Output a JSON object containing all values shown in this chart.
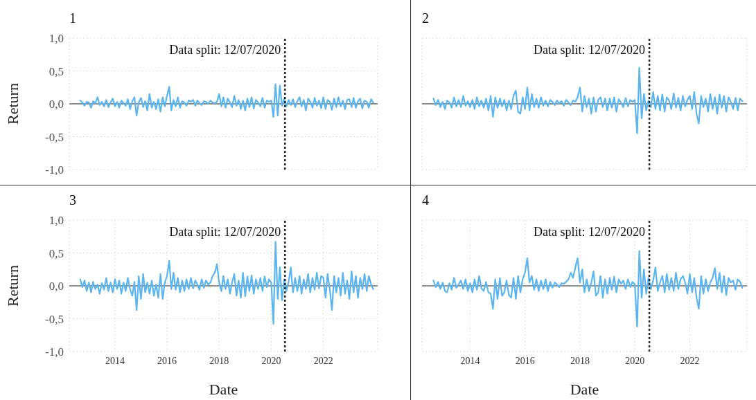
{
  "chart_data": [
    {
      "type": "line",
      "title": "1",
      "ylabel": "Return",
      "tick_labels": "y",
      "grid": true,
      "marker": "none",
      "xlim": [
        "2012-04",
        "2024-02"
      ],
      "xticks": [
        "2014",
        "2016",
        "2018",
        "2020",
        "2022"
      ],
      "ylim": [
        -1,
        1
      ],
      "yticks": [
        {
          "value": -1,
          "label": "-1,0"
        },
        {
          "value": -0.5,
          "label": "-0,5"
        },
        {
          "value": 0,
          "label": "0,0"
        },
        {
          "value": 0.5,
          "label": "0,5"
        },
        {
          "value": 1,
          "label": "1,0"
        }
      ],
      "ref_lines": [
        {
          "axis": "y",
          "value": 0,
          "color": "#666666"
        },
        {
          "axis": "x",
          "value": "2020-07-12",
          "label": "Data split: 12/07/2020",
          "color": "#222222",
          "line_style": "dotted"
        }
      ],
      "x": [
        "2012-09",
        "2012-10",
        "2012-11",
        "2012-12",
        "2013-01",
        "2013-02",
        "2013-03",
        "2013-04",
        "2013-05",
        "2013-06",
        "2013-07",
        "2013-08",
        "2013-09",
        "2013-10",
        "2013-11",
        "2013-12",
        "2014-01",
        "2014-02",
        "2014-03",
        "2014-04",
        "2014-05",
        "2014-06",
        "2014-07",
        "2014-08",
        "2014-09",
        "2014-10",
        "2014-11",
        "2014-12",
        "2015-01",
        "2015-02",
        "2015-03",
        "2015-04",
        "2015-05",
        "2015-06",
        "2015-07",
        "2015-08",
        "2015-09",
        "2015-10",
        "2015-11",
        "2015-12",
        "2016-01",
        "2016-02",
        "2016-03",
        "2016-04",
        "2016-05",
        "2016-06",
        "2016-07",
        "2016-08",
        "2016-09",
        "2016-10",
        "2016-11",
        "2016-12",
        "2017-01",
        "2017-02",
        "2017-03",
        "2017-04",
        "2017-05",
        "2017-06",
        "2017-07",
        "2017-08",
        "2017-09",
        "2017-10",
        "2017-11",
        "2017-12",
        "2018-01",
        "2018-02",
        "2018-03",
        "2018-04",
        "2018-05",
        "2018-06",
        "2018-07",
        "2018-08",
        "2018-09",
        "2018-10",
        "2018-11",
        "2018-12",
        "2019-01",
        "2019-02",
        "2019-03",
        "2019-04",
        "2019-05",
        "2019-06",
        "2019-07",
        "2019-08",
        "2019-09",
        "2019-10",
        "2019-11",
        "2019-12",
        "2020-01",
        "2020-02",
        "2020-03",
        "2020-04",
        "2020-05",
        "2020-06",
        "2020-07",
        "2020-08",
        "2020-09",
        "2020-10",
        "2020-11",
        "2020-12",
        "2021-01",
        "2021-02",
        "2021-03",
        "2021-04",
        "2021-05",
        "2021-06",
        "2021-07",
        "2021-08",
        "2021-09",
        "2021-10",
        "2021-11",
        "2021-12",
        "2022-01",
        "2022-02",
        "2022-03",
        "2022-04",
        "2022-05",
        "2022-06",
        "2022-07",
        "2022-08",
        "2022-09",
        "2022-10",
        "2022-11",
        "2022-12",
        "2023-01",
        "2023-02",
        "2023-03",
        "2023-04",
        "2023-05",
        "2023-06",
        "2023-07",
        "2023-08",
        "2023-09",
        "2023-10",
        "2023-11",
        "2023-12"
      ],
      "series": [
        {
          "color": "#5ab4f0",
          "values": [
            0.05,
            0.02,
            -0.03,
            0.03,
            0.02,
            -0.06,
            0.04,
            0.01,
            0.1,
            -0.02,
            0.03,
            -0.04,
            0.06,
            -0.05,
            0.02,
            0.08,
            -0.04,
            0.03,
            -0.06,
            0.05,
            0.01,
            -0.03,
            0.07,
            -0.08,
            0.04,
            0.1,
            -0.18,
            0.02,
            0.09,
            -0.05,
            0.04,
            -0.1,
            0.15,
            -0.06,
            0.03,
            -0.08,
            0.07,
            -0.12,
            0.1,
            -0.04,
            0.12,
            0.26,
            -0.1,
            0.06,
            -0.04,
            0.1,
            -0.06,
            0.04,
            0.02,
            -0.03,
            0.05,
            0.03,
            0.06,
            -0.03,
            0.05,
            0.01,
            -0.02,
            0.04,
            0.03,
            0,
            0.05,
            0.02,
            0.01,
            0.03,
            0.15,
            -0.04,
            0.1,
            -0.06,
            0.08,
            0.02,
            -0.05,
            0.12,
            -0.03,
            0.06,
            -0.08,
            0.05,
            -0.1,
            0.08,
            -0.05,
            0.1,
            -0.07,
            0.06,
            0.02,
            -0.04,
            0.09,
            -0.06,
            0.05,
            0.03,
            0.05,
            -0.2,
            0.3,
            -0.18,
            0.28,
            -0.03,
            0.08,
            -0.04,
            0.06,
            -0.02,
            0.07,
            -0.05,
            0.04,
            0.1,
            -0.04,
            0.06,
            -0.1,
            0.08,
            0.03,
            -0.06,
            0.09,
            -0.03,
            0.05,
            -0.07,
            0.1,
            -0.08,
            0.06,
            0.03,
            -0.09,
            0.08,
            -0.05,
            0.1,
            -0.04,
            0.05,
            -0.08,
            0.06,
            0.07,
            -0.05,
            0.09,
            -0.06,
            0.04,
            0.08,
            -0.07,
            0.05,
            0.03,
            -0.06,
            0.07,
            0.02
          ]
        }
      ]
    },
    {
      "type": "line",
      "title": "2",
      "tick_labels": false,
      "grid": true,
      "marker": "none",
      "xlim": [
        "2012-04",
        "2024-02"
      ],
      "xticks": [
        "2014",
        "2016",
        "2018",
        "2020",
        "2022"
      ],
      "ylim": [
        -1,
        1
      ],
      "yticks": [
        {
          "value": -1,
          "label": null
        },
        {
          "value": -0.5,
          "label": null
        },
        {
          "value": 0,
          "label": null
        },
        {
          "value": 0.5,
          "label": null
        },
        {
          "value": 1,
          "label": null
        }
      ],
      "ref_lines": [
        {
          "axis": "y",
          "value": 0,
          "color": "#666666"
        },
        {
          "axis": "x",
          "value": "2020-07-12",
          "label": "Data split: 12/07/2020",
          "color": "#222222",
          "line_style": "dotted"
        }
      ],
      "x": [
        "2012-09",
        "2012-10",
        "2012-11",
        "2012-12",
        "2013-01",
        "2013-02",
        "2013-03",
        "2013-04",
        "2013-05",
        "2013-06",
        "2013-07",
        "2013-08",
        "2013-09",
        "2013-10",
        "2013-11",
        "2013-12",
        "2014-01",
        "2014-02",
        "2014-03",
        "2014-04",
        "2014-05",
        "2014-06",
        "2014-07",
        "2014-08",
        "2014-09",
        "2014-10",
        "2014-11",
        "2014-12",
        "2015-01",
        "2015-02",
        "2015-03",
        "2015-04",
        "2015-05",
        "2015-06",
        "2015-07",
        "2015-08",
        "2015-09",
        "2015-10",
        "2015-11",
        "2015-12",
        "2016-01",
        "2016-02",
        "2016-03",
        "2016-04",
        "2016-05",
        "2016-06",
        "2016-07",
        "2016-08",
        "2016-09",
        "2016-10",
        "2016-11",
        "2016-12",
        "2017-01",
        "2017-02",
        "2017-03",
        "2017-04",
        "2017-05",
        "2017-06",
        "2017-07",
        "2017-08",
        "2017-09",
        "2017-10",
        "2017-11",
        "2017-12",
        "2018-01",
        "2018-02",
        "2018-03",
        "2018-04",
        "2018-05",
        "2018-06",
        "2018-07",
        "2018-08",
        "2018-09",
        "2018-10",
        "2018-11",
        "2018-12",
        "2019-01",
        "2019-02",
        "2019-03",
        "2019-04",
        "2019-05",
        "2019-06",
        "2019-07",
        "2019-08",
        "2019-09",
        "2019-10",
        "2019-11",
        "2019-12",
        "2020-01",
        "2020-02",
        "2020-03",
        "2020-04",
        "2020-05",
        "2020-06",
        "2020-07",
        "2020-08",
        "2020-09",
        "2020-10",
        "2020-11",
        "2020-12",
        "2021-01",
        "2021-02",
        "2021-03",
        "2021-04",
        "2021-05",
        "2021-06",
        "2021-07",
        "2021-08",
        "2021-09",
        "2021-10",
        "2021-11",
        "2021-12",
        "2022-01",
        "2022-02",
        "2022-03",
        "2022-04",
        "2022-05",
        "2022-06",
        "2022-07",
        "2022-08",
        "2022-09",
        "2022-10",
        "2022-11",
        "2022-12",
        "2023-01",
        "2023-02",
        "2023-03",
        "2023-04",
        "2023-05",
        "2023-06",
        "2023-07",
        "2023-08",
        "2023-09",
        "2023-10",
        "2023-11",
        "2023-12"
      ],
      "series": [
        {
          "color": "#5ab4f0",
          "values": [
            0.08,
            -0.02,
            0.06,
            -0.05,
            0.03,
            -0.08,
            0.05,
            0.02,
            -0.06,
            0.1,
            -0.04,
            0.06,
            -0.05,
            0.12,
            -0.03,
            0.04,
            -0.05,
            0.06,
            -0.08,
            0.1,
            -0.04,
            0.05,
            -0.06,
            0.08,
            -0.1,
            0.12,
            -0.2,
            0.1,
            -0.06,
            0.08,
            -0.04,
            0.06,
            -0.1,
            0.05,
            -0.08,
            0.12,
            0.2,
            -0.12,
            -0.15,
            0.1,
            -0.08,
            0.25,
            -0.1,
            0.15,
            -0.05,
            0.08,
            -0.06,
            0.1,
            -0.03,
            0.05,
            -0.04,
            0.06,
            0.03,
            -0.02,
            0.05,
            0.01,
            0.04,
            -0.03,
            0.06,
            0.02,
            -0.02,
            0.05,
            0.03,
            0.1,
            0.25,
            -0.12,
            0.12,
            -0.05,
            0.08,
            -0.15,
            0.1,
            -0.12,
            0.06,
            0.1,
            -0.05,
            0.08,
            -0.1,
            0.08,
            -0.06,
            0.1,
            -0.12,
            0.07,
            0.02,
            -0.05,
            0.09,
            -0.04,
            0.06,
            0.03,
            0.06,
            -0.45,
            0.55,
            -0.22,
            0.15,
            -0.1,
            0.05,
            -0.05,
            0.18,
            -0.08,
            0.12,
            -0.1,
            0.14,
            -0.12,
            0.1,
            0.05,
            -0.08,
            0.16,
            -0.06,
            0.09,
            -0.1,
            0.12,
            -0.04,
            0.06,
            0.12,
            -0.08,
            0.18,
            -0.15,
            -0.3,
            0.12,
            -0.05,
            0.08,
            -0.12,
            0.15,
            -0.08,
            0.1,
            -0.15,
            0.14,
            -0.06,
            0.12,
            -0.12,
            0.1,
            0.03,
            -0.08,
            0.09,
            -0.1,
            0.08,
            0.04
          ]
        }
      ]
    },
    {
      "type": "line",
      "title": "3",
      "xlabel": "Date",
      "ylabel": "Return",
      "grid": true,
      "marker": "none",
      "xlim": [
        "2012-04",
        "2024-02"
      ],
      "xticks": [
        "2014",
        "2016",
        "2018",
        "2020",
        "2022"
      ],
      "ylim": [
        -1,
        1
      ],
      "yticks": [
        {
          "value": -1,
          "label": "-1,0"
        },
        {
          "value": -0.5,
          "label": "-0,5"
        },
        {
          "value": 0,
          "label": "0,0"
        },
        {
          "value": 0.5,
          "label": "0,5"
        },
        {
          "value": 1,
          "label": "1,0"
        }
      ],
      "ref_lines": [
        {
          "axis": "y",
          "value": 0,
          "color": "#666666"
        },
        {
          "axis": "x",
          "value": "2020-07-12",
          "label": "Data split: 12/07/2020",
          "color": "#222222",
          "line_style": "dotted"
        }
      ],
      "x": [
        "2012-09",
        "2012-10",
        "2012-11",
        "2012-12",
        "2013-01",
        "2013-02",
        "2013-03",
        "2013-04",
        "2013-05",
        "2013-06",
        "2013-07",
        "2013-08",
        "2013-09",
        "2013-10",
        "2013-11",
        "2013-12",
        "2014-01",
        "2014-02",
        "2014-03",
        "2014-04",
        "2014-05",
        "2014-06",
        "2014-07",
        "2014-08",
        "2014-09",
        "2014-10",
        "2014-11",
        "2014-12",
        "2015-01",
        "2015-02",
        "2015-03",
        "2015-04",
        "2015-05",
        "2015-06",
        "2015-07",
        "2015-08",
        "2015-09",
        "2015-10",
        "2015-11",
        "2015-12",
        "2016-01",
        "2016-02",
        "2016-03",
        "2016-04",
        "2016-05",
        "2016-06",
        "2016-07",
        "2016-08",
        "2016-09",
        "2016-10",
        "2016-11",
        "2016-12",
        "2017-01",
        "2017-02",
        "2017-03",
        "2017-04",
        "2017-05",
        "2017-06",
        "2017-07",
        "2017-08",
        "2017-09",
        "2017-10",
        "2017-11",
        "2017-12",
        "2018-01",
        "2018-02",
        "2018-03",
        "2018-04",
        "2018-05",
        "2018-06",
        "2018-07",
        "2018-08",
        "2018-09",
        "2018-10",
        "2018-11",
        "2018-12",
        "2019-01",
        "2019-02",
        "2019-03",
        "2019-04",
        "2019-05",
        "2019-06",
        "2019-07",
        "2019-08",
        "2019-09",
        "2019-10",
        "2019-11",
        "2019-12",
        "2020-01",
        "2020-02",
        "2020-03",
        "2020-04",
        "2020-05",
        "2020-06",
        "2020-07",
        "2020-08",
        "2020-09",
        "2020-10",
        "2020-11",
        "2020-12",
        "2021-01",
        "2021-02",
        "2021-03",
        "2021-04",
        "2021-05",
        "2021-06",
        "2021-07",
        "2021-08",
        "2021-09",
        "2021-10",
        "2021-11",
        "2021-12",
        "2022-01",
        "2022-02",
        "2022-03",
        "2022-04",
        "2022-05",
        "2022-06",
        "2022-07",
        "2022-08",
        "2022-09",
        "2022-10",
        "2022-11",
        "2022-12",
        "2023-01",
        "2023-02",
        "2023-03",
        "2023-04",
        "2023-05",
        "2023-06",
        "2023-07",
        "2023-08",
        "2023-09",
        "2023-10",
        "2023-11",
        "2023-12"
      ],
      "series": [
        {
          "color": "#5ab4f0",
          "values": [
            0.1,
            -0.02,
            0.08,
            -0.08,
            0.05,
            -0.1,
            0.06,
            -0.05,
            0.02,
            -0.12,
            0.04,
            -0.06,
            0.12,
            -0.08,
            0.05,
            -0.1,
            0.1,
            -0.05,
            0.08,
            -0.12,
            0.05,
            -0.08,
            0.12,
            -0.05,
            -0.15,
            0.06,
            -0.37,
            0.15,
            -0.2,
            0.18,
            -0.1,
            0.05,
            -0.12,
            0.08,
            -0.15,
            0.02,
            -0.18,
            0.18,
            -0.2,
            0.05,
            0.15,
            0.38,
            -0.05,
            0.2,
            -0.06,
            0.12,
            -0.1,
            0.08,
            -0.08,
            0.1,
            -0.05,
            0.12,
            -0.04,
            0.08,
            0.02,
            -0.06,
            0.1,
            -0.03,
            0.08,
            0.02,
            0.05,
            0.15,
            0.2,
            0.33,
            0.05,
            -0.08,
            0.15,
            -0.05,
            0.1,
            -0.12,
            0.05,
            0.18,
            -0.15,
            0.08,
            -0.18,
            0.2,
            -0.16,
            0.14,
            -0.08,
            0.16,
            -0.12,
            0.1,
            -0.05,
            0.12,
            -0.08,
            0.14,
            -0.02,
            0.1,
            0.05,
            -0.58,
            0.67,
            -0.2,
            0.28,
            -0.22,
            0.1,
            -0.08,
            0.06,
            0.28,
            -0.1,
            0.12,
            -0.08,
            0.15,
            -0.12,
            0.1,
            -0.05,
            0.18,
            -0.1,
            0.12,
            -0.06,
            0.2,
            -0.04,
            0.15,
            0.12,
            -0.18,
            0.18,
            -0.05,
            -0.37,
            0.15,
            -0.1,
            0.12,
            -0.15,
            0.2,
            -0.12,
            0.08,
            -0.2,
            0.22,
            -0.1,
            0.15,
            -0.18,
            0.12,
            -0.05,
            0.18,
            -0.08,
            0.15,
            0.02,
            -0.05
          ]
        }
      ]
    },
    {
      "type": "line",
      "title": "4",
      "xlabel": "Date",
      "tick_labels": "x",
      "grid": true,
      "marker": "none",
      "xlim": [
        "2012-04",
        "2024-02"
      ],
      "xticks": [
        "2014",
        "2016",
        "2018",
        "2020",
        "2022"
      ],
      "ylim": [
        -1,
        1
      ],
      "yticks": [
        {
          "value": -1,
          "label": null
        },
        {
          "value": -0.5,
          "label": null
        },
        {
          "value": 0,
          "label": null
        },
        {
          "value": 0.5,
          "label": null
        },
        {
          "value": 1,
          "label": null
        }
      ],
      "ref_lines": [
        {
          "axis": "y",
          "value": 0,
          "color": "#666666"
        },
        {
          "axis": "x",
          "value": "2020-07-12",
          "label": "Data split: 12/07/2020",
          "color": "#222222",
          "line_style": "dotted"
        }
      ],
      "x": [
        "2012-09",
        "2012-10",
        "2012-11",
        "2012-12",
        "2013-01",
        "2013-02",
        "2013-03",
        "2013-04",
        "2013-05",
        "2013-06",
        "2013-07",
        "2013-08",
        "2013-09",
        "2013-10",
        "2013-11",
        "2013-12",
        "2014-01",
        "2014-02",
        "2014-03",
        "2014-04",
        "2014-05",
        "2014-06",
        "2014-07",
        "2014-08",
        "2014-09",
        "2014-10",
        "2014-11",
        "2014-12",
        "2015-01",
        "2015-02",
        "2015-03",
        "2015-04",
        "2015-05",
        "2015-06",
        "2015-07",
        "2015-08",
        "2015-09",
        "2015-10",
        "2015-11",
        "2015-12",
        "2016-01",
        "2016-02",
        "2016-03",
        "2016-04",
        "2016-05",
        "2016-06",
        "2016-07",
        "2016-08",
        "2016-09",
        "2016-10",
        "2016-11",
        "2016-12",
        "2017-01",
        "2017-02",
        "2017-03",
        "2017-04",
        "2017-05",
        "2017-06",
        "2017-07",
        "2017-08",
        "2017-09",
        "2017-10",
        "2017-11",
        "2017-12",
        "2018-01",
        "2018-02",
        "2018-03",
        "2018-04",
        "2018-05",
        "2018-06",
        "2018-07",
        "2018-08",
        "2018-09",
        "2018-10",
        "2018-11",
        "2018-12",
        "2019-01",
        "2019-02",
        "2019-03",
        "2019-04",
        "2019-05",
        "2019-06",
        "2019-07",
        "2019-08",
        "2019-09",
        "2019-10",
        "2019-11",
        "2019-12",
        "2020-01",
        "2020-02",
        "2020-03",
        "2020-04",
        "2020-05",
        "2020-06",
        "2020-07",
        "2020-08",
        "2020-09",
        "2020-10",
        "2020-11",
        "2020-12",
        "2021-01",
        "2021-02",
        "2021-03",
        "2021-04",
        "2021-05",
        "2021-06",
        "2021-07",
        "2021-08",
        "2021-09",
        "2021-10",
        "2021-11",
        "2021-12",
        "2022-01",
        "2022-02",
        "2022-03",
        "2022-04",
        "2022-05",
        "2022-06",
        "2022-07",
        "2022-08",
        "2022-09",
        "2022-10",
        "2022-11",
        "2022-12",
        "2023-01",
        "2023-02",
        "2023-03",
        "2023-04",
        "2023-05",
        "2023-06",
        "2023-07",
        "2023-08",
        "2023-09",
        "2023-10",
        "2023-11",
        "2023-12"
      ],
      "series": [
        {
          "color": "#5ab4f0",
          "values": [
            0.08,
            -0.02,
            0.06,
            -0.05,
            0.05,
            -0.08,
            -0.1,
            0.04,
            -0.06,
            0.12,
            -0.03,
            0.02,
            0.08,
            -0.05,
            0.1,
            -0.08,
            0.04,
            -0.1,
            0.1,
            -0.06,
            0.15,
            -0.04,
            -0.08,
            0.06,
            -0.1,
            -0.12,
            -0.35,
            0.1,
            -0.2,
            0.12,
            -0.15,
            -0.1,
            0.08,
            -0.14,
            -0.18,
            0.12,
            -0.2,
            0.15,
            -0.1,
            0.1,
            0.2,
            0.42,
            0.05,
            0.15,
            -0.06,
            0.1,
            -0.08,
            0.08,
            -0.05,
            0.1,
            -0.08,
            0.06,
            -0.03,
            0.05,
            0.02,
            -0.02,
            0.04,
            0.03,
            0.06,
            0.1,
            0.2,
            0.12,
            0.28,
            0.42,
            0.05,
            0.25,
            -0.1,
            0.1,
            -0.08,
            0.05,
            0.22,
            -0.15,
            -0.1,
            0.15,
            -0.18,
            0.1,
            -0.12,
            0.12,
            -0.06,
            0.14,
            -0.1,
            0.1,
            0.03,
            0.08,
            -0.05,
            0.1,
            -0.02,
            0.06,
            0.02,
            -0.62,
            0.53,
            -0.18,
            0.25,
            -0.12,
            0.12,
            -0.05,
            0.08,
            0.28,
            -0.08,
            0.05,
            0.15,
            -0.1,
            0.18,
            -0.06,
            0.12,
            -0.08,
            0.2,
            -0.05,
            0.1,
            0.15,
            0.05,
            -0.12,
            0.18,
            -0.1,
            0.12,
            -0.18,
            -0.35,
            0.15,
            -0.12,
            0.1,
            -0.08,
            0.05,
            0.12,
            0.27,
            -0.05,
            0.2,
            -0.1,
            0.15,
            -0.14,
            0.12,
            0.05,
            0.08,
            -0.06,
            0.1,
            0.06,
            -0.03
          ]
        }
      ]
    }
  ]
}
